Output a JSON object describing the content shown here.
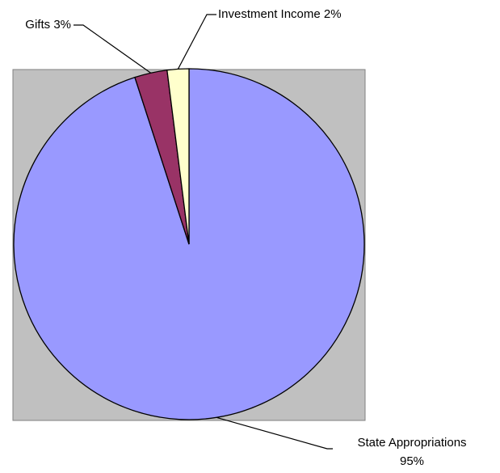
{
  "chart_data": {
    "type": "pie",
    "categories": [
      "State Appropriations",
      "Gifts",
      "Investment Income"
    ],
    "values": [
      95,
      3,
      2
    ],
    "value_labels": [
      "95%",
      "3%",
      "2%"
    ],
    "colors": [
      "#9999ff",
      "#993366",
      "#ffffcc"
    ]
  }
}
